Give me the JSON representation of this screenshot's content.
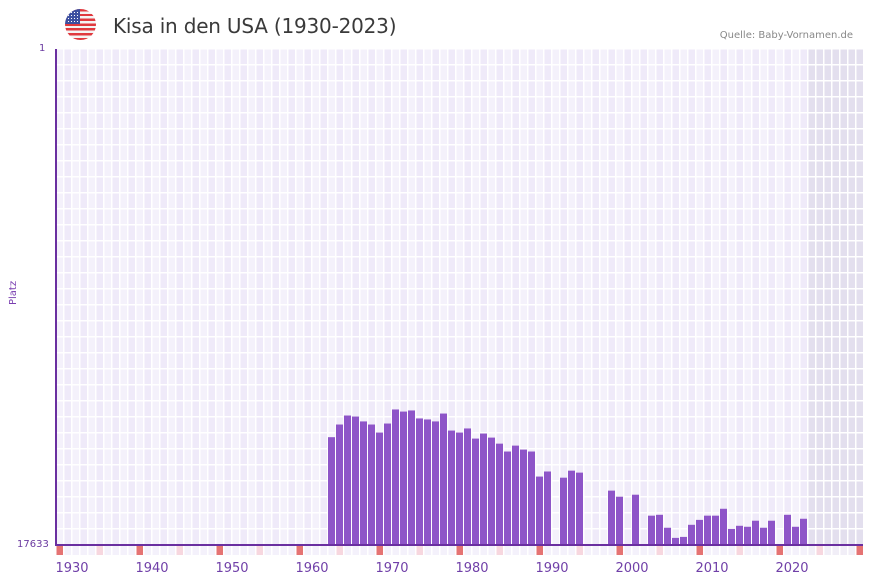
{
  "header": {
    "title": "Kisa in den USA (1930-2023)",
    "source": "Quelle: Baby-Vornamen.de",
    "flag_icon": "us-flag-icon"
  },
  "axes": {
    "ylabel": "Platz",
    "ytop": "1",
    "ybottom": "17633",
    "xticks": [
      "1930",
      "1940",
      "1950",
      "1960",
      "1970",
      "1980",
      "1990",
      "2000",
      "2010",
      "2020"
    ]
  },
  "colors": {
    "bar": "#8e55c8",
    "grid_a": "#efeaf9",
    "grid_b": "#f4f1fb",
    "future": "#e3dfee",
    "decade_mark": "#e57373",
    "half_decade_mark": "#f7d7df",
    "axis": "#6a2fa0"
  },
  "chart_data": {
    "type": "bar",
    "title": "Kisa in den USA (1930-2023)",
    "xlabel": "",
    "ylabel": "Platz",
    "ylim": [
      17633,
      1
    ],
    "y_inverted": true,
    "grid": true,
    "x_range": [
      1928,
      2028
    ],
    "shaded_future_from": 2022,
    "categories": [
      1962,
      1963,
      1964,
      1965,
      1966,
      1967,
      1968,
      1969,
      1970,
      1971,
      1972,
      1973,
      1974,
      1975,
      1976,
      1977,
      1978,
      1979,
      1980,
      1981,
      1982,
      1983,
      1984,
      1985,
      1986,
      1987,
      1988,
      1989,
      1991,
      1992,
      1993,
      1997,
      1998,
      2000,
      2002,
      2003,
      2004,
      2005,
      2006,
      2007,
      2008,
      2009,
      2010,
      2011,
      2012,
      2013,
      2014,
      2015,
      2016,
      2017,
      2019,
      2020,
      2021
    ],
    "values": [
      13800,
      13350,
      13030,
      13065,
      13240,
      13350,
      13635,
      13315,
      12815,
      12890,
      12850,
      13135,
      13170,
      13240,
      12960,
      13565,
      13635,
      13490,
      13850,
      13670,
      13815,
      14030,
      14310,
      14100,
      14240,
      14310,
      15200,
      15020,
      15240,
      14990,
      15060,
      15700,
      15915,
      15845,
      16590,
      16560,
      17020,
      17380,
      17345,
      16915,
      16740,
      16590,
      16590,
      16345,
      17060,
      16950,
      16985,
      16770,
      17020,
      16770,
      16560,
      16985,
      16700
    ]
  }
}
